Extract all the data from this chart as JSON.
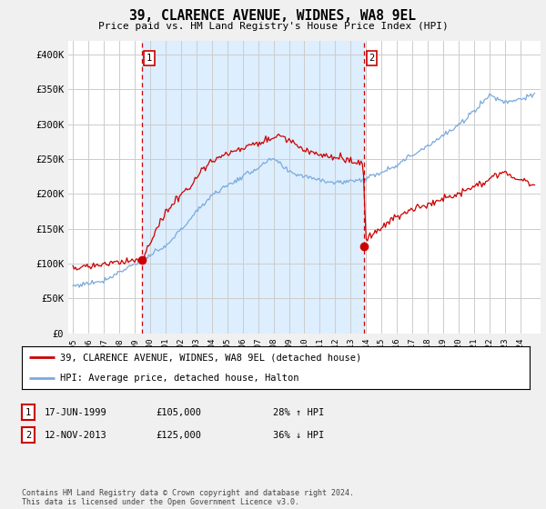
{
  "title": "39, CLARENCE AVENUE, WIDNES, WA8 9EL",
  "subtitle": "Price paid vs. HM Land Registry's House Price Index (HPI)",
  "legend_line1": "39, CLARENCE AVENUE, WIDNES, WA8 9EL (detached house)",
  "legend_line2": "HPI: Average price, detached house, Halton",
  "transaction1_date": "17-JUN-1999",
  "transaction1_price": "£105,000",
  "transaction1_hpi": "28% ↑ HPI",
  "transaction2_date": "12-NOV-2013",
  "transaction2_price": "£125,000",
  "transaction2_hpi": "36% ↓ HPI",
  "footnote": "Contains HM Land Registry data © Crown copyright and database right 2024.\nThis data is licensed under the Open Government Licence v3.0.",
  "price_line_color": "#cc0000",
  "hpi_line_color": "#7aaadd",
  "shade_color": "#ddeeff",
  "marker1_x": 1999.46,
  "marker1_y": 105000,
  "marker2_x": 2013.87,
  "marker2_y": 125000,
  "ylim": [
    0,
    420000
  ],
  "yticks": [
    0,
    50000,
    100000,
    150000,
    200000,
    250000,
    300000,
    350000,
    400000
  ],
  "xlim_start": 1994.7,
  "xlim_end": 2025.3,
  "background_color": "#f0f0f0",
  "plot_bg_color": "#ffffff",
  "grid_color": "#cccccc"
}
